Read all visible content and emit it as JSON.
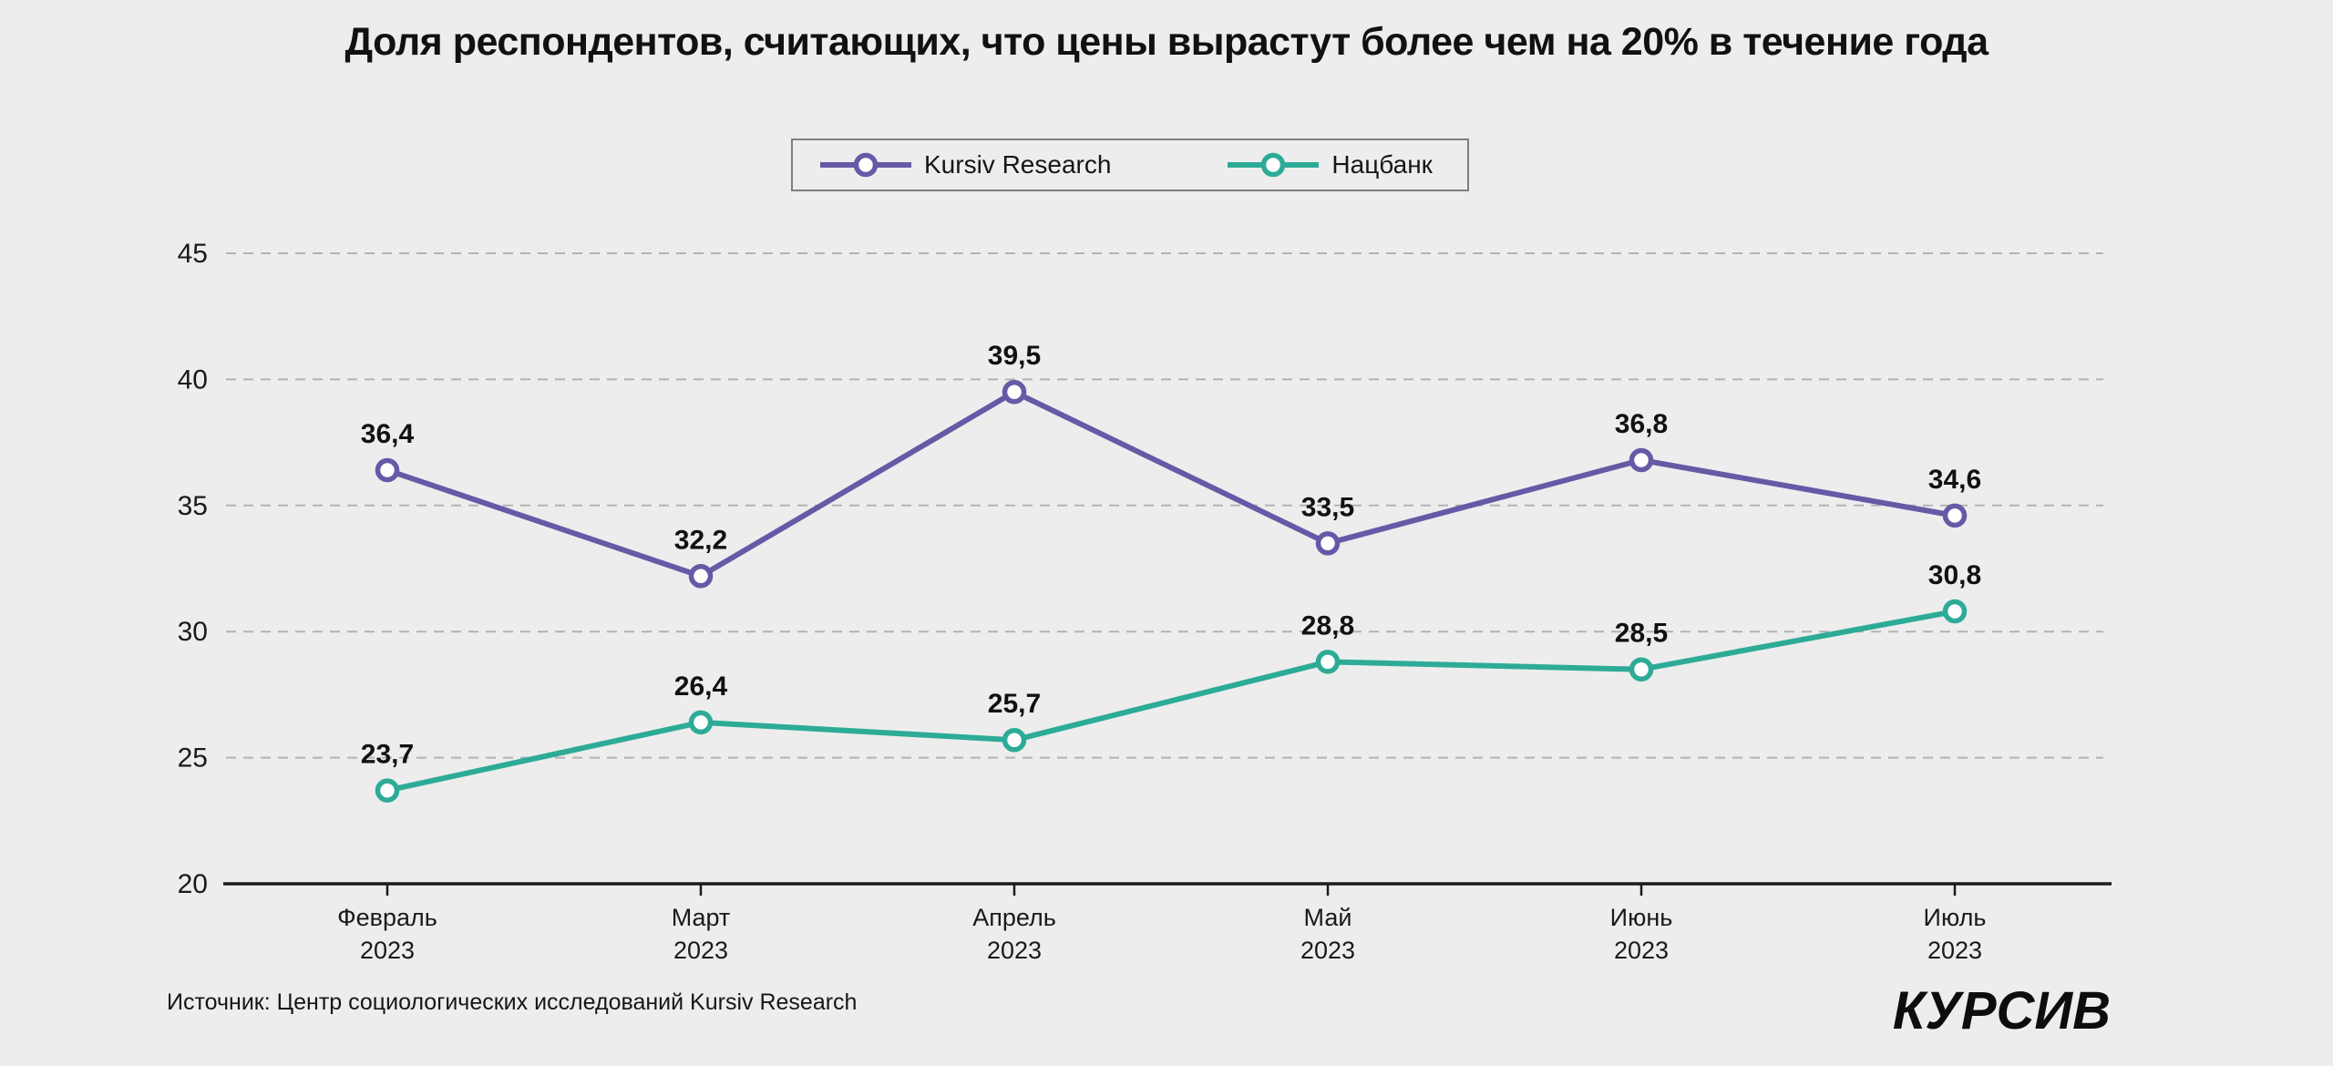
{
  "page": {
    "background": "#ededed"
  },
  "title": "Доля респондентов, считающих, что цены вырастут более чем на 20% в течение года",
  "legend": {
    "items": [
      {
        "label": "Kursiv Research",
        "color": "#6759a6"
      },
      {
        "label": "Нацбанк",
        "color": "#2dab97"
      }
    ]
  },
  "chart_data": {
    "type": "line",
    "title": "Доля респондентов, считающих, что цены вырастут более чем на 20% в течение года",
    "categories": [
      {
        "month": "Февраль",
        "year": "2023"
      },
      {
        "month": "Март",
        "year": "2023"
      },
      {
        "month": "Апрель",
        "year": "2023"
      },
      {
        "month": "Май",
        "year": "2023"
      },
      {
        "month": "Июнь",
        "year": "2023"
      },
      {
        "month": "Июль",
        "year": "2023"
      }
    ],
    "series": [
      {
        "name": "Kursiv Research",
        "color": "#6759a6",
        "values": [
          36.4,
          32.2,
          39.5,
          33.5,
          36.8,
          34.6
        ],
        "labels": [
          "36,4",
          "32,2",
          "39,5",
          "33,5",
          "36,8",
          "34,6"
        ]
      },
      {
        "name": "Нацбанк",
        "color": "#2dab97",
        "values": [
          23.7,
          26.4,
          25.7,
          28.8,
          28.5,
          30.8
        ],
        "labels": [
          "23,7",
          "26,4",
          "25,7",
          "28,8",
          "28,5",
          "30,8"
        ]
      }
    ],
    "y_axis": {
      "min": 20,
      "max": 45,
      "step": 5,
      "tick_labels": [
        "45",
        "40",
        "35",
        "30",
        "25",
        "20"
      ]
    },
    "grid": "horizontal dashed",
    "grid_color": "#b3b3b3",
    "axis_color": "#1c1c1c",
    "marker_style": "open circle",
    "legend_position": "top center"
  },
  "source": "Источник: Центр социологических исследований Kursiv Research",
  "logo": "КУРСИВ"
}
